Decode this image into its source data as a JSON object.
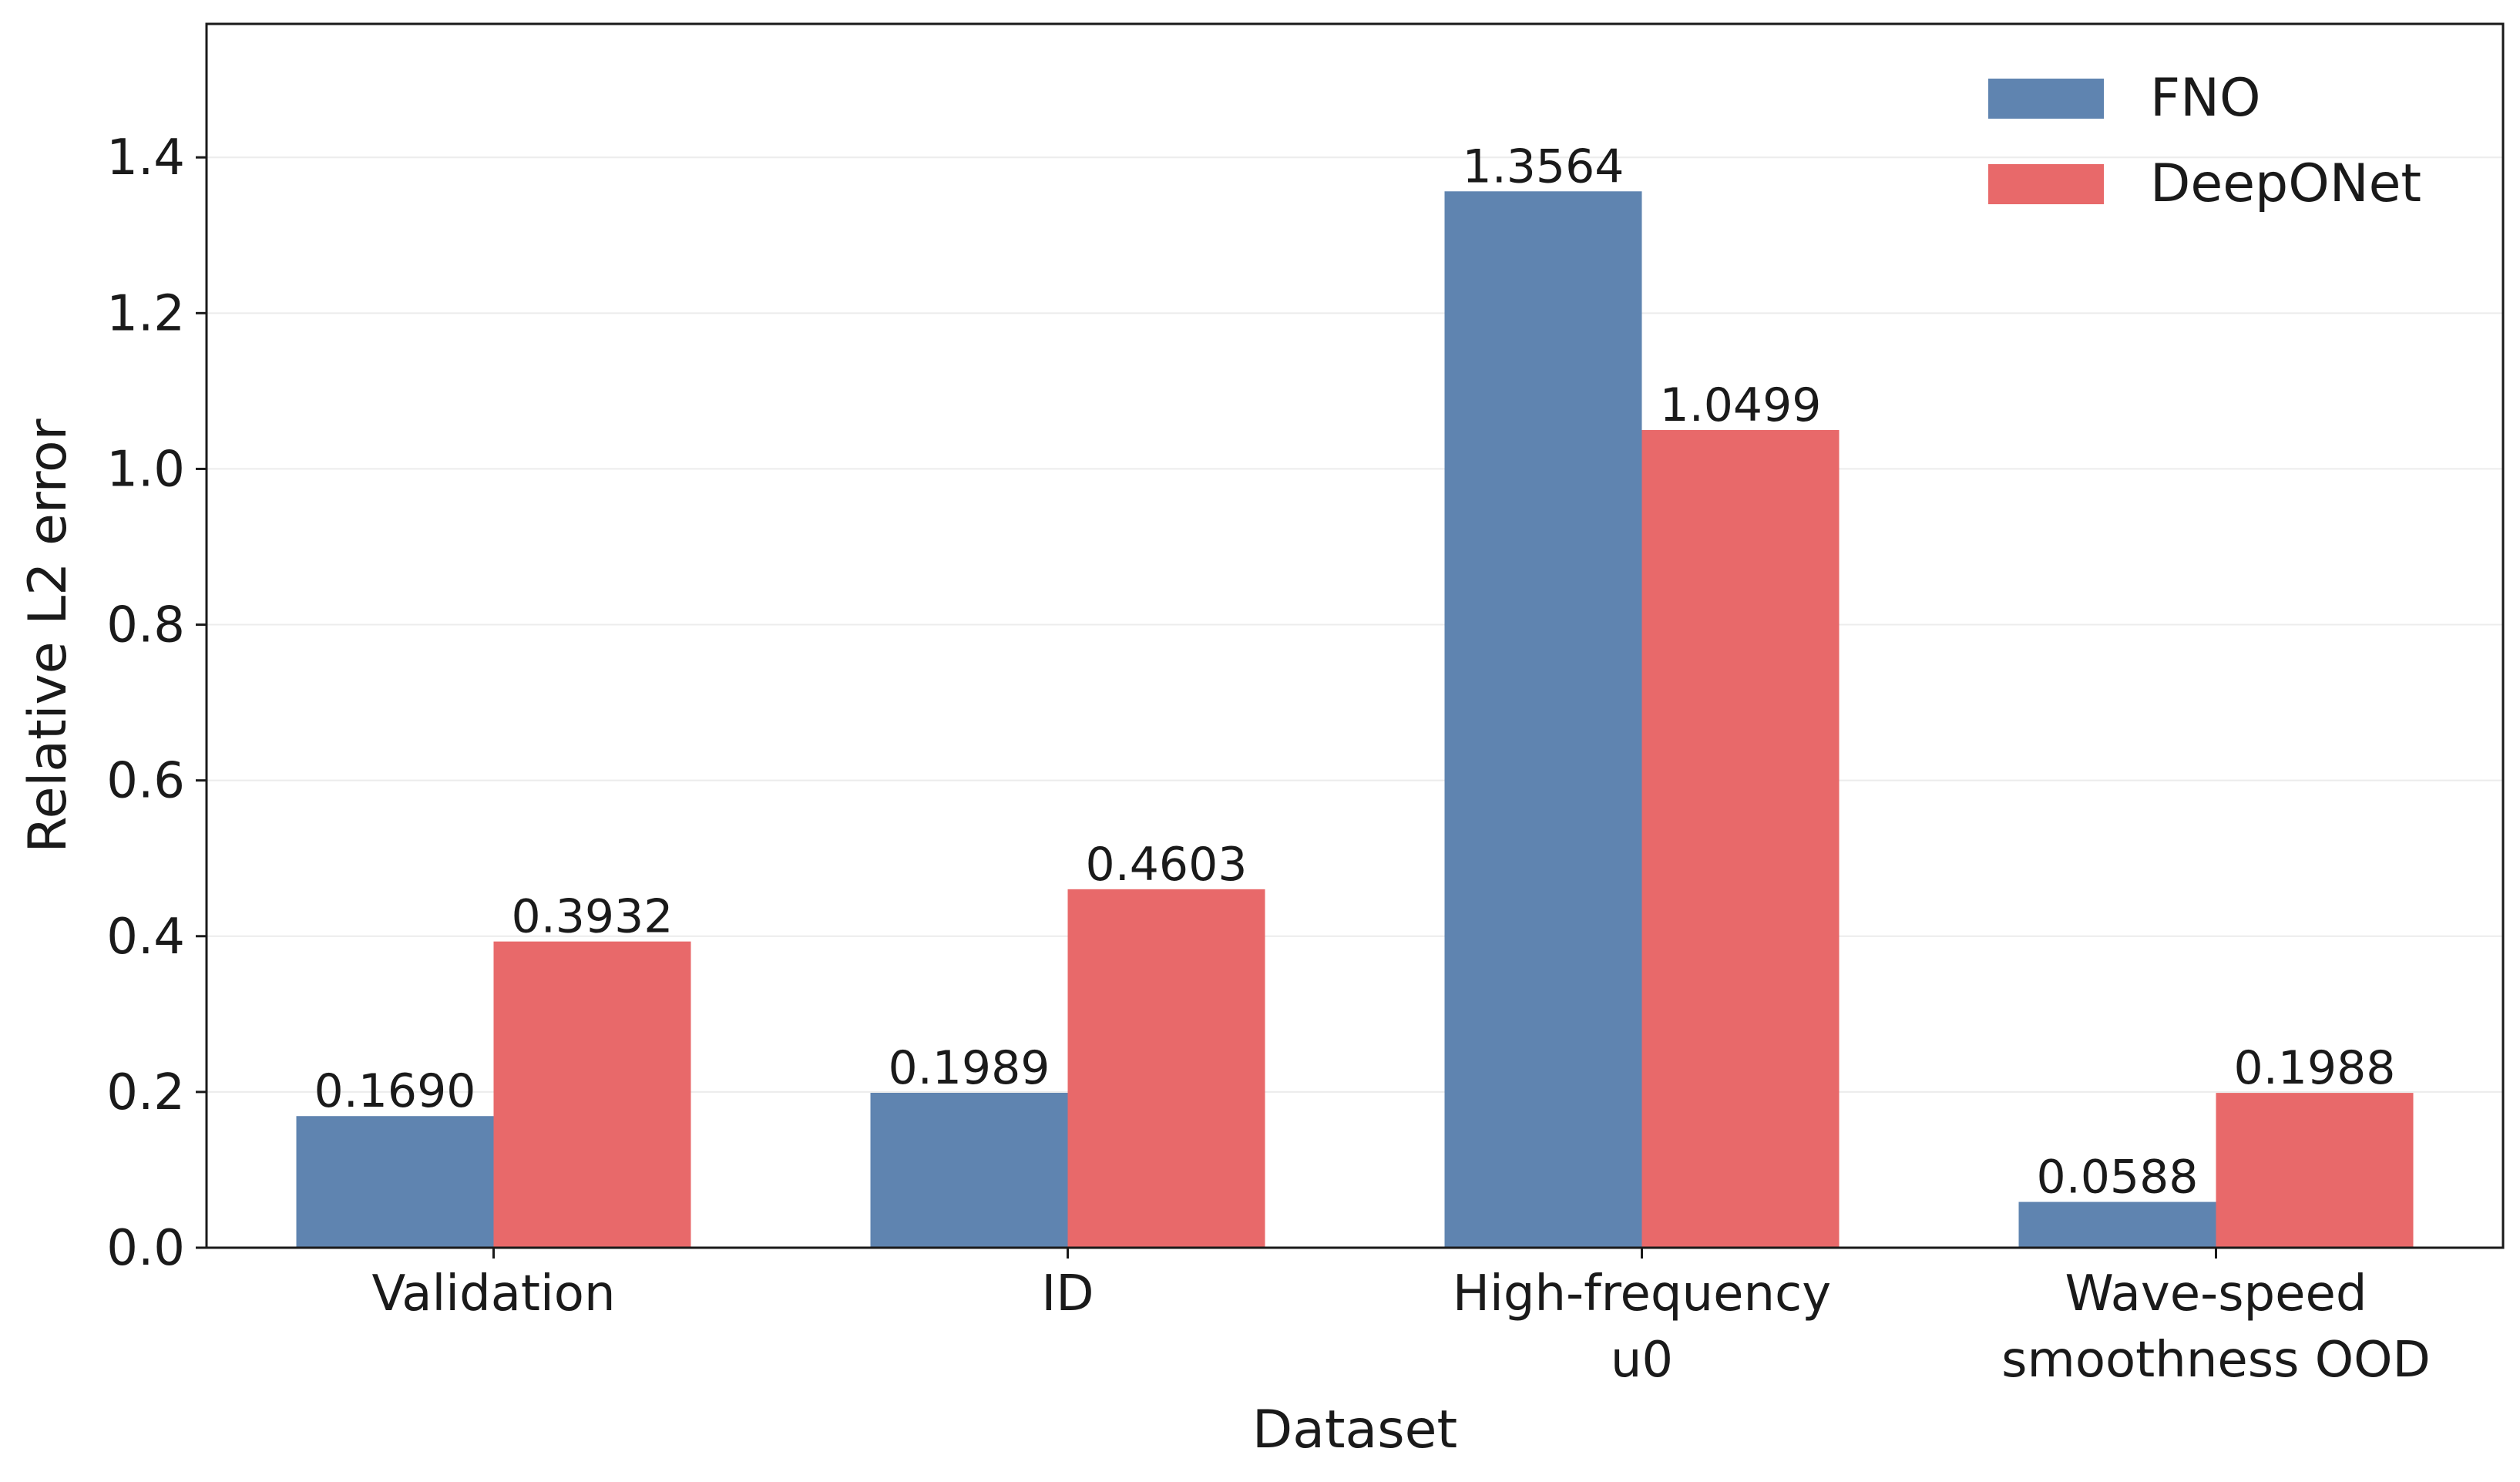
{
  "chart_data": {
    "type": "bar",
    "title": "",
    "xlabel": "Dataset",
    "ylabel": "Relative L2 error",
    "categories": [
      [
        "Validation"
      ],
      [
        "ID"
      ],
      [
        "High-frequency",
        "u0"
      ],
      [
        "Wave-speed",
        "smoothness OOD"
      ]
    ],
    "series": [
      {
        "name": "FNO",
        "color": "#5f84b0",
        "values": [
          0.169,
          0.1989,
          1.3564,
          0.0588
        ],
        "labels": [
          "0.1690",
          "0.1989",
          "1.3564",
          "0.0588"
        ]
      },
      {
        "name": "DeepONet",
        "color": "#e8696a",
        "values": [
          0.3932,
          0.4603,
          1.0499,
          0.1988
        ],
        "labels": [
          "0.3932",
          "0.4603",
          "1.0499",
          "0.1988"
        ]
      }
    ],
    "ylim": [
      0,
      1.5714
    ],
    "yticks": [
      "0.0",
      "0.2",
      "0.4",
      "0.6",
      "0.8",
      "1.0",
      "1.2",
      "1.4"
    ],
    "ytick_values": [
      0,
      0.2,
      0.4,
      0.6,
      0.8,
      1.0,
      1.2,
      1.4
    ],
    "grid": "y",
    "legend_position": "top-right"
  }
}
